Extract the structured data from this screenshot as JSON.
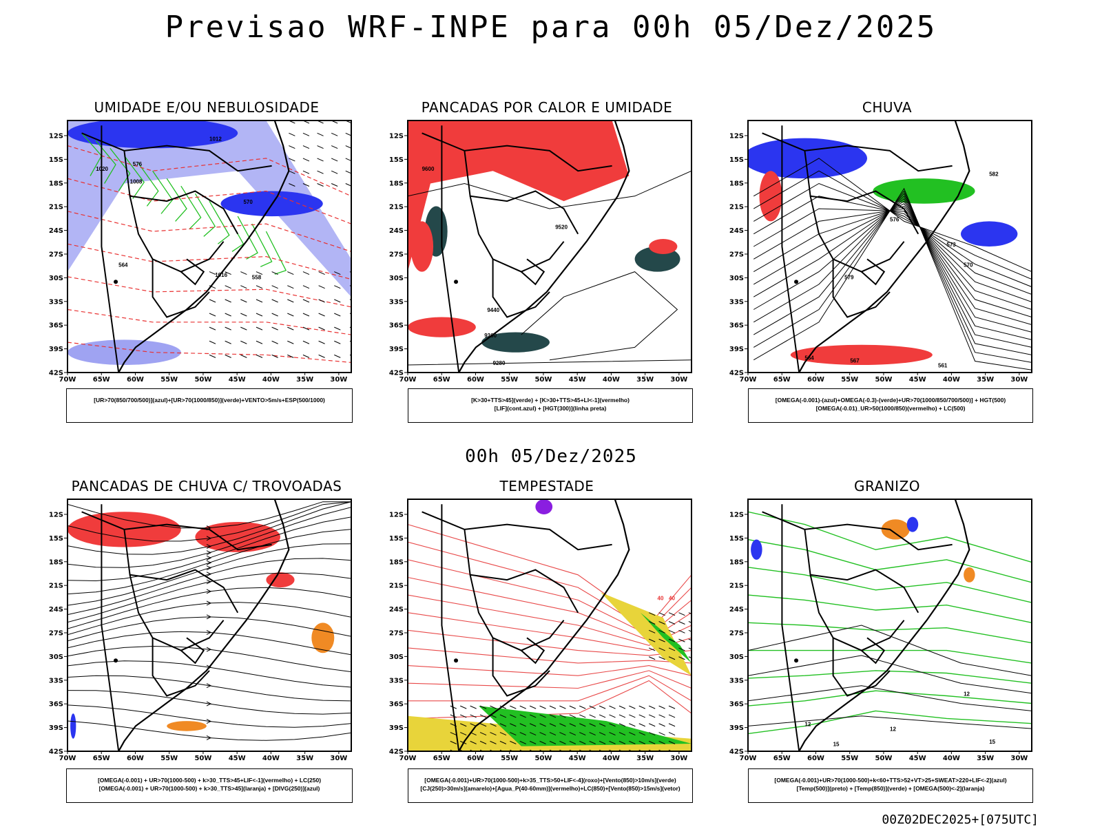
{
  "title": "Previsao WRF-INPE  para 00h 05/Dez/2025",
  "subtitle": "00h 05/Dez/2025",
  "footer": "00Z02DEC2025+[075UTC]",
  "axes": {
    "lat_labels": [
      "12S",
      "15S",
      "18S",
      "21S",
      "24S",
      "27S",
      "30S",
      "33S",
      "36S",
      "39S",
      "42S"
    ],
    "lon_labels": [
      "70W",
      "65W",
      "60W",
      "55W",
      "50W",
      "45W",
      "40W",
      "35W",
      "30W"
    ]
  },
  "colors": {
    "red": "#f03c3c",
    "green": "#22c022",
    "blue": "#2b35f0",
    "lightblue": "#9fa3f2",
    "orange": "#f08a24",
    "yellow": "#e8d43a",
    "darkteal": "#24484a",
    "purple": "#8a1ee0"
  },
  "panels": [
    {
      "title": "UMIDADE E/OU NEBULOSIDADE",
      "legend": [
        "[UR>70(850/700/500)](azul)+[UR>70(1000/850)](verde)+VENTO>5m/s+ESP(500/1000)"
      ],
      "contour_labels": [
        "1012",
        "1008",
        "1016",
        "1020",
        "576",
        "570",
        "564",
        "558"
      ]
    },
    {
      "title": "PANCADAS POR CALOR E UMIDADE",
      "legend": [
        "[K>30+TTS>45](verde) + [K>30+TTS>45+LI<-1](vermelho)",
        "[LIF](cont.azul) + [HGT(300)](linha preta)"
      ],
      "contour_labels": [
        "9600",
        "9520",
        "9440",
        "9360",
        "9280"
      ]
    },
    {
      "title": "CHUVA",
      "legend": [
        "[OMEGA(-0.001)-(azul)+OMEGA(-0.3)-(verde)+UR>70(1000/850/700/500)] + HGT(500)",
        "[OMEGA(-0.01)_UR>50(1000/850)(vermelho) + LC(500)"
      ],
      "contour_labels": [
        "582",
        "579",
        "576",
        "573",
        "570",
        "567",
        "564",
        "561"
      ]
    },
    {
      "title": "PANCADAS DE CHUVA C/ TROVOADAS",
      "legend": [
        "[OMEGA(-0.001) + UR>70(1000-500) + k>30_TTS>45+LIF<-1](vermelho) + LC(250)",
        "[OMEGA(-0.001) + UR>70(1000-500) + k>30_TTS>45](laranja) + [DIVG(250)](azul)"
      ],
      "contour_labels": []
    },
    {
      "title": "TEMPESTADE",
      "legend": [
        "[OMEGA(-0.001)+UR>70(1000-500)+k>35_TTS>50+LIF<-4](roxo)+[Vento(850)>10m/s](verde)",
        "[CJ(250)>30m/s](amarelo)+[Agua_P(40-60mm)](vermelho)+LC(850)+[Vento(850)>15m/s](vetor)"
      ],
      "contour_labels": [
        "40",
        "40"
      ]
    },
    {
      "title": "GRANIZO",
      "legend": [
        "[OMEGA(-0.001)+UR>70(1000-500)+k<60+TTS>52+VT>25+SWEAT>220+LIF<-2](azul)",
        "[Temp(500)](preto) + [Temp(850)](verde) + [OMEGA(500)<-2](laranja)"
      ],
      "contour_labels": [
        "12",
        "12",
        "12",
        "15",
        "15"
      ]
    }
  ]
}
